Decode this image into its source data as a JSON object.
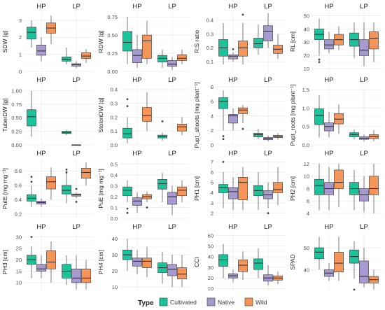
{
  "colors": {
    "Cultivated": "#1cc29a",
    "Native": "#a79ad0",
    "Wild": "#f5955a",
    "grid": "#e6e6e6",
    "axis_text": "#4d4d4d"
  },
  "legend": {
    "title": "Type",
    "items": [
      "Cultivated",
      "Native",
      "Wild"
    ]
  },
  "chart_data": [
    {
      "type": "boxplot",
      "ylabel": "SDW [g]",
      "groups": [
        "HP",
        "LP"
      ],
      "series": [
        "Cultivated",
        "Native",
        "Wild"
      ],
      "ylim": [
        0,
        3.5
      ],
      "yticks": [
        0,
        1,
        2,
        3
      ],
      "boxes": [
        [
          [
            1.4,
            1.9,
            2.3,
            2.6,
            3.0
          ],
          [
            0.6,
            0.95,
            1.2,
            1.55,
            2.0
          ],
          [
            1.6,
            2.25,
            2.55,
            2.85,
            3.3
          ]
        ],
        [
          [
            0.4,
            0.6,
            0.7,
            0.85,
            1.4
          ],
          [
            0.2,
            0.3,
            0.4,
            0.45,
            0.6
          ],
          [
            0.5,
            0.75,
            0.9,
            1.1,
            1.3
          ]
        ]
      ]
    },
    {
      "type": "boxplot",
      "ylabel": "RDW [g]",
      "groups": [
        "HP",
        "LP"
      ],
      "series": [
        "Cultivated",
        "Native",
        "Wild"
      ],
      "ylim": [
        0,
        0.82
      ],
      "yticks": [
        0,
        0.25,
        0.5,
        0.75
      ],
      "boxes": [
        [
          [
            0.1,
            0.28,
            0.4,
            0.55,
            0.75
          ],
          [
            0.05,
            0.12,
            0.22,
            0.3,
            0.5
          ],
          [
            0.1,
            0.18,
            0.42,
            0.5,
            0.7
          ]
        ],
        [
          [
            0.05,
            0.13,
            0.18,
            0.22,
            0.3
          ],
          [
            0.02,
            0.07,
            0.1,
            0.15,
            0.2
          ],
          [
            0.1,
            0.15,
            0.18,
            0.23,
            0.3
          ]
        ]
      ]
    },
    {
      "type": "boxplot",
      "ylabel": "R:S ratio",
      "groups": [
        "HP",
        "LP"
      ],
      "series": [
        "Cultivated",
        "Native",
        "Wild"
      ],
      "ylim": [
        0.03,
        0.46
      ],
      "yticks": [
        0.1,
        0.2,
        0.3,
        0.4
      ],
      "boxes": [
        [
          [
            0.08,
            0.14,
            0.2,
            0.26,
            0.38
          ],
          [
            0.1,
            0.12,
            0.14,
            0.15,
            0.17
          ],
          [
            0.08,
            0.14,
            0.2,
            0.25,
            0.38
          ]
        ],
        [
          [
            0.15,
            0.2,
            0.23,
            0.27,
            0.37
          ],
          [
            0.2,
            0.25,
            0.32,
            0.36,
            0.45
          ],
          [
            0.12,
            0.16,
            0.19,
            0.22,
            0.3
          ]
        ]
      ],
      "outliers": [
        [
          [],
          [
            0.19
          ],
          [
            0.44
          ]
        ],
        [
          [],
          [],
          []
        ]
      ]
    },
    {
      "type": "boxplot",
      "ylabel": "RL [cm]",
      "groups": [
        "HP",
        "LP"
      ],
      "series": [
        "Cultivated",
        "Native",
        "Wild"
      ],
      "ylim": [
        8,
        53
      ],
      "yticks": [
        10,
        20,
        30,
        40,
        50
      ],
      "boxes": [
        [
          [
            20,
            32,
            36,
            40,
            48
          ],
          [
            22,
            25,
            28,
            32,
            38
          ],
          [
            24,
            28,
            32,
            36,
            42
          ]
        ],
        [
          [
            18,
            27,
            32,
            37,
            45
          ],
          [
            12,
            20,
            24,
            32,
            45
          ],
          [
            15,
            25,
            33,
            38,
            45
          ]
        ]
      ],
      "outliers": [
        [
          [
            17,
            15
          ],
          [],
          []
        ],
        [
          [],
          [],
          []
        ]
      ]
    },
    {
      "type": "boxplot",
      "ylabel": "TuberDW [g]",
      "groups": [
        "HP",
        "LP"
      ],
      "series": [
        "Cultivated",
        "Native",
        "Wild"
      ],
      "ylim": [
        0,
        1.1
      ],
      "yticks": [
        0,
        0.25,
        0.5,
        0.75,
        1
      ],
      "boxes": [
        [
          [
            0.15,
            0.35,
            0.52,
            0.65,
            1.0
          ],
          null,
          null
        ],
        [
          [
            0.18,
            0.21,
            0.23,
            0.25,
            0.28
          ],
          [
            0.0,
            0.0,
            0.0,
            0.0,
            0.0
          ],
          null
        ]
      ]
    },
    {
      "type": "boxplot",
      "ylabel": "StolonDW [g]",
      "groups": [
        "HP",
        "LP"
      ],
      "series": [
        "Cultivated",
        "Native",
        "Wild"
      ],
      "ylim": [
        0,
        0.43
      ],
      "yticks": [
        0,
        0.1,
        0.2,
        0.3,
        0.4
      ],
      "boxes": [
        [
          [
            0.01,
            0.05,
            0.08,
            0.12,
            0.2
          ],
          null,
          [
            0.1,
            0.17,
            0.21,
            0.27,
            0.38
          ]
        ],
        [
          [
            0.03,
            0.05,
            0.06,
            0.07,
            0.09
          ],
          null,
          [
            0.07,
            0.1,
            0.13,
            0.15,
            0.2
          ]
        ]
      ],
      "outliers": [
        [
          [
            0.33,
            0.28
          ],
          [],
          []
        ],
        [
          [
            0.17
          ],
          [],
          []
        ]
      ]
    },
    {
      "type": "boxplot",
      "ylabel": "Pupt_shoots [mg plant⁻¹]",
      "groups": [
        "HP",
        "LP"
      ],
      "series": [
        "Cultivated",
        "Native",
        "Wild"
      ],
      "ylim": [
        0,
        8.2
      ],
      "yticks": [
        0,
        2,
        4,
        6,
        8
      ],
      "boxes": [
        [
          [
            2,
            5,
            6,
            6.5,
            7.5
          ],
          [
            2,
            3,
            4,
            4.2,
            5
          ],
          [
            3,
            4.3,
            4.8,
            5.1,
            5.5
          ]
        ],
        [
          [
            0.8,
            1.1,
            1.4,
            1.6,
            2.2
          ],
          [
            0.5,
            0.7,
            0.9,
            1.0,
            1.3
          ],
          [
            0.7,
            1.0,
            1.2,
            1.3,
            1.6
          ]
        ]
      ],
      "outliers": [
        [
          [
            1.2,
            0.8
          ],
          [],
          [
            2.2
          ]
        ],
        [
          [],
          [],
          []
        ]
      ]
    },
    {
      "type": "boxplot",
      "ylabel": "Pupt_roots [mg plant⁻¹]",
      "groups": [
        "HP",
        "LP"
      ],
      "series": [
        "Cultivated",
        "Native",
        "Wild"
      ],
      "ylim": [
        0,
        1.62
      ],
      "yticks": [
        0,
        0.5,
        1,
        1.5
      ],
      "boxes": [
        [
          [
            0.2,
            0.55,
            0.8,
            0.98,
            1.35
          ],
          [
            0.2,
            0.38,
            0.5,
            0.6,
            0.9
          ],
          [
            0.3,
            0.57,
            0.7,
            0.85,
            1.1
          ]
        ],
        [
          [
            0.15,
            0.22,
            0.28,
            0.33,
            0.42
          ],
          [
            0.1,
            0.15,
            0.18,
            0.22,
            0.28
          ],
          [
            0.1,
            0.17,
            0.22,
            0.28,
            0.4
          ]
        ]
      ]
    },
    {
      "type": "boxplot",
      "ylabel": "PutE [mg mg⁻¹]",
      "groups": [
        "HP",
        "LP"
      ],
      "series": [
        "Cultivated",
        "Native",
        "Wild"
      ],
      "ylim": [
        0.14,
        0.97
      ],
      "yticks": [
        0.2,
        0.4,
        0.6,
        0.8
      ],
      "boxes": [
        [
          [
            0.3,
            0.38,
            0.42,
            0.47,
            0.6
          ],
          [
            0.3,
            0.34,
            0.36,
            0.38,
            0.42
          ],
          [
            0.4,
            0.55,
            0.65,
            0.72,
            0.85
          ]
        ],
        [
          [
            0.35,
            0.48,
            0.53,
            0.6,
            0.8
          ],
          [
            0.42,
            0.45,
            0.47,
            0.48,
            0.5
          ],
          [
            0.6,
            0.7,
            0.78,
            0.84,
            0.92
          ]
        ]
      ],
      "outliers": [
        [
          [
            0.72,
            0.65
          ],
          [],
          []
        ],
        [
          [
            0.82,
            0.78
          ],
          [
            0.55,
            0.37
          ],
          []
        ]
      ]
    },
    {
      "type": "boxplot",
      "ylabel": "PuE [mg mg⁻¹]",
      "groups": [
        "HP",
        "LP"
      ],
      "series": [
        "Cultivated",
        "Native",
        "Wild"
      ],
      "ylim": [
        0,
        0.55
      ],
      "yticks": [
        0,
        0.1,
        0.2,
        0.3,
        0.4,
        0.5
      ],
      "boxes": [
        [
          [
            0.15,
            0.21,
            0.26,
            0.29,
            0.35
          ],
          [
            0.05,
            0.12,
            0.16,
            0.19,
            0.24
          ],
          [
            0.15,
            0.18,
            0.2,
            0.22,
            0.25
          ]
        ],
        [
          [
            0.15,
            0.27,
            0.32,
            0.36,
            0.42
          ],
          [
            0.03,
            0.13,
            0.2,
            0.24,
            0.3
          ],
          [
            0.15,
            0.21,
            0.26,
            0.29,
            0.35
          ]
        ]
      ],
      "outliers": [
        [
          [
            0.05,
            0.09
          ],
          [],
          [
            0.1
          ]
        ],
        [
          [],
          [],
          []
        ]
      ]
    },
    {
      "type": "boxplot",
      "ylabel": "PH1 [cm]",
      "groups": [
        "HP",
        "LP"
      ],
      "series": [
        "Cultivated",
        "Native",
        "Wild"
      ],
      "ylim": [
        1.5,
        7.3
      ],
      "yticks": [
        2,
        3,
        4,
        5,
        6,
        7
      ],
      "boxes": [
        [
          [
            2.5,
            4.0,
            4.5,
            4.8,
            6.0
          ],
          [
            2.3,
            3.4,
            4.1,
            4.5,
            5.5
          ],
          [
            2.3,
            3.3,
            5.0,
            5.5,
            6.5
          ]
        ],
        [
          [
            2.3,
            3.7,
            4.2,
            4.7,
            6.0
          ],
          [
            2.5,
            3.4,
            3.8,
            4.2,
            5.0
          ],
          [
            2.8,
            4.0,
            4.3,
            5.0,
            6.5
          ]
        ]
      ],
      "outliers": [
        [
          [
            7.0
          ],
          [],
          []
        ],
        [
          [],
          [
            2.0
          ],
          []
        ]
      ]
    },
    {
      "type": "boxplot",
      "ylabel": "PH2 [cm]",
      "groups": [
        "HP",
        "LP"
      ],
      "series": [
        "Cultivated",
        "Native",
        "Wild"
      ],
      "ylim": [
        3.2,
        12.8
      ],
      "yticks": [
        4,
        6,
        8,
        10,
        12
      ],
      "boxes": [
        [
          [
            4.5,
            7,
            8.5,
            9.5,
            12
          ],
          [
            4.5,
            7,
            8,
            9,
            11.5
          ],
          [
            5,
            8,
            9,
            11,
            12
          ]
        ],
        [
          [
            4.5,
            7,
            8,
            9,
            11
          ],
          [
            4.2,
            6,
            7,
            8,
            10
          ],
          [
            4,
            7,
            8,
            10,
            12
          ]
        ]
      ]
    },
    {
      "type": "boxplot",
      "ylabel": "PH3 [cm]",
      "groups": [
        "HP",
        "LP"
      ],
      "series": [
        "Cultivated",
        "Native",
        "Wild"
      ],
      "ylim": [
        6,
        32
      ],
      "yticks": [
        10,
        15,
        20,
        25,
        30
      ],
      "boxes": [
        [
          [
            12,
            18,
            20,
            22,
            26
          ],
          [
            12,
            15,
            16,
            18,
            22
          ],
          [
            10,
            16,
            19,
            24,
            28
          ]
        ],
        [
          [
            9,
            12,
            15,
            18,
            22
          ],
          [
            7,
            10,
            12,
            16,
            22
          ],
          [
            7,
            10,
            12,
            16,
            20
          ]
        ]
      ],
      "outliers": [
        [
          [
            30
          ],
          [],
          []
        ],
        [
          [],
          [],
          []
        ]
      ]
    },
    {
      "type": "boxplot",
      "ylabel": "PH4 [cm]",
      "groups": [
        "HP",
        "LP"
      ],
      "series": [
        "Cultivated",
        "Native",
        "Wild"
      ],
      "ylim": [
        7,
        44
      ],
      "yticks": [
        10,
        20,
        30,
        40
      ],
      "boxes": [
        [
          [
            20,
            27,
            30,
            33,
            40
          ],
          [
            18,
            23,
            26,
            28,
            33
          ],
          [
            16,
            22,
            26,
            28,
            35
          ]
        ],
        [
          [
            12,
            19,
            22,
            25,
            32
          ],
          [
            10,
            17,
            21,
            24,
            30
          ],
          [
            10,
            15,
            18,
            22,
            30
          ]
        ]
      ]
    },
    {
      "type": "boxplot",
      "ylabel": "CCI",
      "groups": [
        "HP",
        "LP"
      ],
      "series": [
        "Cultivated",
        "Native",
        "Wild"
      ],
      "ylim": [
        7,
        63
      ],
      "yticks": [
        10,
        20,
        30,
        40,
        50,
        60
      ],
      "boxes": [
        [
          [
            20,
            31,
            37,
            42,
            52
          ],
          [
            16,
            20,
            22,
            24,
            28
          ],
          [
            18,
            26,
            32,
            37,
            45
          ]
        ],
        [
          [
            20,
            28,
            34,
            38,
            48
          ],
          [
            13,
            17,
            20,
            23,
            32
          ],
          [
            14,
            18,
            20,
            22,
            26
          ]
        ]
      ]
    },
    {
      "type": "boxplot",
      "ylabel": "SPAD",
      "groups": [
        "HP",
        "LP"
      ],
      "series": [
        "Cultivated",
        "Native",
        "Wild"
      ],
      "ylim": [
        30,
        57
      ],
      "yticks": [
        40,
        50
      ],
      "boxes": [
        [
          [
            40,
            45,
            48,
            50,
            55
          ],
          [
            35,
            37,
            38.5,
            40,
            43
          ],
          [
            35,
            39,
            43,
            48,
            55
          ]
        ],
        [
          [
            36,
            43,
            46,
            49,
            53
          ],
          [
            32,
            34,
            37,
            44,
            50
          ],
          [
            31,
            34,
            35.5,
            37,
            40
          ]
        ]
      ],
      "outliers": [
        [
          [],
          [],
          []
        ],
        [
          [
            31
          ],
          [],
          []
        ]
      ]
    }
  ]
}
